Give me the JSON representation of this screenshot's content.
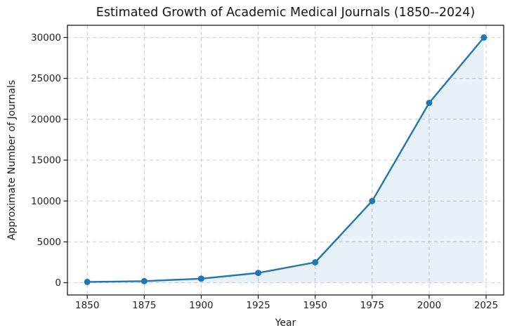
{
  "figure": {
    "background": "#ffffff"
  },
  "chart_data": {
    "type": "line",
    "title": "Estimated Growth of Academic Medical Journals (1850--2024)",
    "xlabel": "Year",
    "ylabel": "Approximate Number of Journals",
    "x": [
      1850,
      1875,
      1900,
      1925,
      1950,
      1975,
      2000,
      2024
    ],
    "values": [
      100,
      200,
      500,
      1200,
      2500,
      10000,
      22000,
      30000
    ],
    "x_ticks": [
      1850,
      1875,
      1900,
      1925,
      1950,
      1975,
      2000,
      2025
    ],
    "y_ticks": [
      0,
      5000,
      10000,
      15000,
      20000,
      25000,
      30000
    ],
    "xlim": [
      1841.3,
      2032.7
    ],
    "ylim": [
      -1495,
      31495
    ],
    "grid": true,
    "grid_style": "dashed",
    "area_fill": true,
    "area_baseline": 0,
    "marker": "circle",
    "colors": {
      "line": "#1f77b4",
      "marker": "#1f77b4",
      "fill": "#1f77b4",
      "fill_opacity": 0.1,
      "grid": "#cccccc",
      "frame": "#1a1a1a",
      "tick": "#1a1a1a",
      "text": "#141414"
    }
  }
}
